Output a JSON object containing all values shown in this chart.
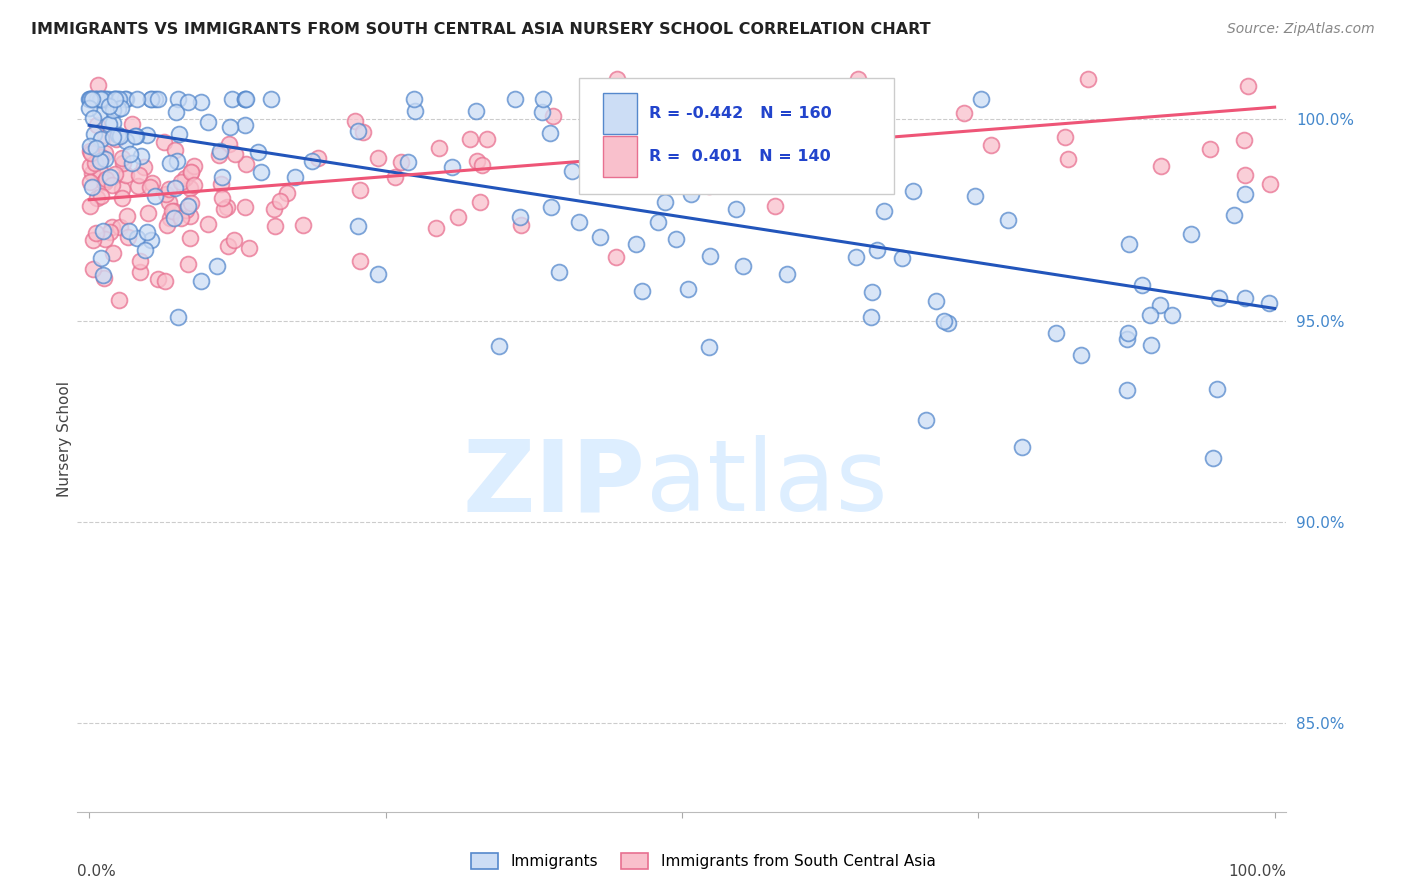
{
  "title": "IMMIGRANTS VS IMMIGRANTS FROM SOUTH CENTRAL ASIA NURSERY SCHOOL CORRELATION CHART",
  "source": "Source: ZipAtlas.com",
  "ylabel": "Nursery School",
  "ytick_labels": [
    "85.0%",
    "90.0%",
    "95.0%",
    "100.0%"
  ],
  "ytick_values": [
    0.85,
    0.9,
    0.95,
    1.0
  ],
  "xlim": [
    0.0,
    1.0
  ],
  "ylim": [
    0.828,
    1.013
  ],
  "legend_r_blue": "-0.442",
  "legend_n_blue": "160",
  "legend_r_pink": "0.401",
  "legend_n_pink": "140",
  "blue_face": "#ccddf5",
  "blue_edge": "#5588cc",
  "pink_face": "#f9c0cc",
  "pink_edge": "#e87090",
  "blue_line_color": "#2255bb",
  "pink_line_color": "#ee5577",
  "blue_trend_x": [
    0.0,
    1.0
  ],
  "blue_trend_y": [
    0.9985,
    0.953
  ],
  "pink_trend_x": [
    0.0,
    1.0
  ],
  "pink_trend_y": [
    0.98,
    1.003
  ],
  "watermark_color": "#ddeeff",
  "grid_color": "#cccccc",
  "title_color": "#222222",
  "source_color": "#888888",
  "ylabel_color": "#444444",
  "ytick_color": "#4488cc",
  "xtick_color": "#444444",
  "legend_box_color": "#eeeeee",
  "legend_text_color": "#2244cc"
}
